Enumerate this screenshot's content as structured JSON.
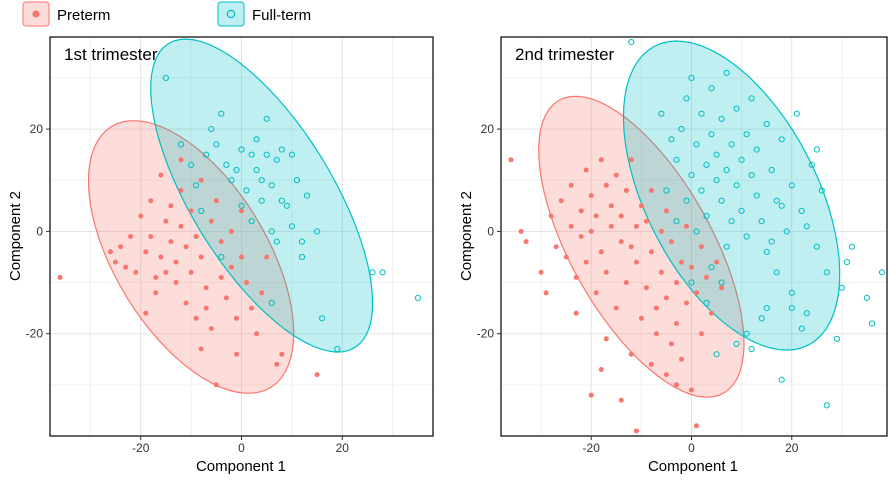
{
  "legend": {
    "placement": "top-left",
    "items": [
      {
        "label": "Preterm",
        "color": "#F8766D",
        "marker": "filled-circle"
      },
      {
        "label": "Full-term",
        "color": "#00BFC4",
        "marker": "open-circle"
      }
    ]
  },
  "chart_data": [
    {
      "type": "scatter",
      "title": "1st trimester",
      "xlabel": "Component 1",
      "ylabel": "Component 2",
      "xlim": [
        -38,
        38
      ],
      "ylim": [
        -40,
        38
      ],
      "xticks": [
        -20,
        0,
        20
      ],
      "yticks": [
        -20,
        0,
        20
      ],
      "grid": true,
      "series": [
        {
          "name": "Preterm",
          "color": "#F8766D",
          "ellipse": {
            "center": [
              -10,
              -5
            ],
            "rx": 30,
            "ry": 15,
            "angle_deg": -58
          },
          "points": [
            [
              -36,
              -9
            ],
            [
              -26,
              -4
            ],
            [
              -24,
              -3
            ],
            [
              -23,
              -7
            ],
            [
              -22,
              -1
            ],
            [
              -21,
              -8
            ],
            [
              -20,
              3
            ],
            [
              -19,
              -4
            ],
            [
              -18,
              6
            ],
            [
              -18,
              -1
            ],
            [
              -17,
              -9
            ],
            [
              -17,
              -12
            ],
            [
              -16,
              11
            ],
            [
              -16,
              -5
            ],
            [
              -15,
              2
            ],
            [
              -15,
              -8
            ],
            [
              -14,
              -2
            ],
            [
              -14,
              5
            ],
            [
              -13,
              -10
            ],
            [
              -13,
              -6
            ],
            [
              -12,
              1
            ],
            [
              -12,
              8
            ],
            [
              -11,
              -3
            ],
            [
              -11,
              -14
            ],
            [
              -10,
              4
            ],
            [
              -10,
              -8
            ],
            [
              -9,
              -1
            ],
            [
              -9,
              -17
            ],
            [
              -8,
              -5
            ],
            [
              -8,
              10
            ],
            [
              -8,
              -23
            ],
            [
              -7,
              -11
            ],
            [
              -6,
              2
            ],
            [
              -6,
              -19
            ],
            [
              -5,
              -30
            ],
            [
              -5,
              6
            ],
            [
              -4,
              -9
            ],
            [
              -4,
              -2
            ],
            [
              -3,
              -13
            ],
            [
              -2,
              0
            ],
            [
              -2,
              -7
            ],
            [
              -1,
              -17
            ],
            [
              -1,
              -24
            ],
            [
              0,
              4
            ],
            [
              0,
              -5
            ],
            [
              1,
              -10
            ],
            [
              2,
              -15
            ],
            [
              3,
              -20
            ],
            [
              4,
              -12
            ],
            [
              5,
              -5
            ],
            [
              8,
              -24
            ],
            [
              7,
              -26
            ],
            [
              15,
              -28
            ],
            [
              -25,
              -6
            ],
            [
              -19,
              -16
            ],
            [
              -12,
              14
            ],
            [
              -7,
              -15
            ]
          ]
        },
        {
          "name": "Full-term",
          "color": "#00BFC4",
          "ellipse": {
            "center": [
              4,
              7
            ],
            "rx": 35,
            "ry": 14,
            "angle_deg": -58
          },
          "points": [
            [
              -15,
              30
            ],
            [
              -12,
              17
            ],
            [
              -10,
              13
            ],
            [
              -9,
              9
            ],
            [
              -7,
              15
            ],
            [
              -6,
              20
            ],
            [
              -5,
              17
            ],
            [
              -4,
              23
            ],
            [
              -3,
              13
            ],
            [
              -2,
              10
            ],
            [
              -1,
              12
            ],
            [
              0,
              5
            ],
            [
              0,
              16
            ],
            [
              1,
              8
            ],
            [
              2,
              15
            ],
            [
              2,
              2
            ],
            [
              3,
              12
            ],
            [
              3,
              18
            ],
            [
              4,
              10
            ],
            [
              4,
              6
            ],
            [
              5,
              15
            ],
            [
              5,
              22
            ],
            [
              6,
              0
            ],
            [
              6,
              9
            ],
            [
              7,
              14
            ],
            [
              8,
              6
            ],
            [
              8,
              16
            ],
            [
              9,
              5
            ],
            [
              10,
              15
            ],
            [
              10,
              1
            ],
            [
              11,
              10
            ],
            [
              12,
              -2
            ],
            [
              13,
              7
            ],
            [
              15,
              0
            ],
            [
              16,
              -17
            ],
            [
              19,
              -23
            ],
            [
              26,
              -8
            ],
            [
              28,
              -8
            ],
            [
              35,
              -13
            ],
            [
              6,
              -14
            ],
            [
              -4,
              -5
            ],
            [
              -8,
              4
            ],
            [
              7,
              -2
            ],
            [
              12,
              -5
            ]
          ]
        }
      ]
    },
    {
      "type": "scatter",
      "title": "2nd trimester",
      "xlabel": "Component 1",
      "ylabel": "Component 2",
      "xlim": [
        -38,
        39
      ],
      "ylim": [
        -40,
        38
      ],
      "xticks": [
        -20,
        0,
        20
      ],
      "yticks": [
        -20,
        0,
        20
      ],
      "grid": true,
      "series": [
        {
          "name": "Preterm",
          "color": "#F8766D",
          "ellipse": {
            "center": [
              -10,
              -3
            ],
            "rx": 33,
            "ry": 14,
            "angle_deg": -60
          },
          "points": [
            [
              -36,
              14
            ],
            [
              -34,
              0
            ],
            [
              -33,
              -2
            ],
            [
              -30,
              -8
            ],
            [
              -28,
              3
            ],
            [
              -27,
              -3
            ],
            [
              -26,
              6
            ],
            [
              -25,
              -5
            ],
            [
              -24,
              1
            ],
            [
              -24,
              9
            ],
            [
              -23,
              -9
            ],
            [
              -22,
              4
            ],
            [
              -22,
              -1
            ],
            [
              -21,
              12
            ],
            [
              -21,
              -6
            ],
            [
              -20,
              0
            ],
            [
              -20,
              7
            ],
            [
              -19,
              -12
            ],
            [
              -19,
              3
            ],
            [
              -18,
              14
            ],
            [
              -18,
              -4
            ],
            [
              -17,
              9
            ],
            [
              -17,
              -8
            ],
            [
              -16,
              1
            ],
            [
              -16,
              5
            ],
            [
              -15,
              -15
            ],
            [
              -15,
              11
            ],
            [
              -14,
              -2
            ],
            [
              -14,
              3
            ],
            [
              -13,
              8
            ],
            [
              -13,
              -10
            ],
            [
              -12,
              -3
            ],
            [
              -12,
              14
            ],
            [
              -11,
              1
            ],
            [
              -11,
              -6
            ],
            [
              -10,
              5
            ],
            [
              -10,
              -17
            ],
            [
              -9,
              -11
            ],
            [
              -9,
              2
            ],
            [
              -8,
              -4
            ],
            [
              -8,
              8
            ],
            [
              -7,
              -15
            ],
            [
              -7,
              -20
            ],
            [
              -6,
              0
            ],
            [
              -6,
              -8
            ],
            [
              -5,
              4
            ],
            [
              -5,
              -13
            ],
            [
              -4,
              -22
            ],
            [
              -4,
              -2
            ],
            [
              -3,
              -10
            ],
            [
              -3,
              -18
            ],
            [
              -2,
              -6
            ],
            [
              -2,
              -25
            ],
            [
              -1,
              -14
            ],
            [
              -1,
              1
            ],
            [
              0,
              -7
            ],
            [
              0,
              -31
            ],
            [
              1,
              -12
            ],
            [
              2,
              -3
            ],
            [
              2,
              -20
            ],
            [
              3,
              -9
            ],
            [
              4,
              -16
            ],
            [
              5,
              -6
            ],
            [
              6,
              -11
            ],
            [
              -20,
              -32
            ],
            [
              -18,
              -27
            ],
            [
              -14,
              -33
            ],
            [
              -11,
              -39
            ],
            [
              -5,
              -28
            ],
            [
              -3,
              -30
            ],
            [
              -17,
              -21
            ],
            [
              -23,
              -16
            ],
            [
              -29,
              -12
            ],
            [
              -12,
              -24
            ],
            [
              -8,
              -26
            ],
            [
              1,
              -38
            ]
          ]
        },
        {
          "name": "Full-term",
          "color": "#00BFC4",
          "ellipse": {
            "center": [
              8,
              7
            ],
            "rx": 33,
            "ry": 17,
            "angle_deg": -62
          },
          "points": [
            [
              -12,
              37
            ],
            [
              -6,
              23
            ],
            [
              -4,
              18
            ],
            [
              -3,
              14
            ],
            [
              -2,
              20
            ],
            [
              -1,
              26
            ],
            [
              0,
              11
            ],
            [
              0,
              30
            ],
            [
              1,
              17
            ],
            [
              2,
              8
            ],
            [
              2,
              23
            ],
            [
              3,
              13
            ],
            [
              3,
              3
            ],
            [
              4,
              19
            ],
            [
              4,
              28
            ],
            [
              5,
              10
            ],
            [
              5,
              15
            ],
            [
              6,
              6
            ],
            [
              6,
              22
            ],
            [
              7,
              12
            ],
            [
              7,
              31
            ],
            [
              8,
              2
            ],
            [
              8,
              17
            ],
            [
              9,
              9
            ],
            [
              9,
              24
            ],
            [
              10,
              14
            ],
            [
              10,
              4
            ],
            [
              11,
              19
            ],
            [
              11,
              -1
            ],
            [
              12,
              11
            ],
            [
              12,
              26
            ],
            [
              13,
              7
            ],
            [
              13,
              16
            ],
            [
              14,
              2
            ],
            [
              15,
              21
            ],
            [
              15,
              -4
            ],
            [
              16,
              12
            ],
            [
              17,
              6
            ],
            [
              17,
              -8
            ],
            [
              18,
              18
            ],
            [
              19,
              0
            ],
            [
              20,
              9
            ],
            [
              20,
              -12
            ],
            [
              21,
              23
            ],
            [
              22,
              4
            ],
            [
              23,
              -16
            ],
            [
              24,
              13
            ],
            [
              25,
              -3
            ],
            [
              26,
              8
            ],
            [
              27,
              -8
            ],
            [
              29,
              -21
            ],
            [
              30,
              -11
            ],
            [
              31,
              -6
            ],
            [
              32,
              -3
            ],
            [
              35,
              -13
            ],
            [
              36,
              -18
            ],
            [
              38,
              -8
            ],
            [
              14,
              -17
            ],
            [
              11,
              -20
            ],
            [
              9,
              -22
            ],
            [
              12,
              -23
            ],
            [
              18,
              -29
            ],
            [
              20,
              -15
            ],
            [
              22,
              -19
            ],
            [
              27,
              -34
            ],
            [
              15,
              -15
            ],
            [
              5,
              -24
            ],
            [
              3,
              -14
            ],
            [
              6,
              -10
            ],
            [
              7,
              -3
            ],
            [
              -1,
              6
            ],
            [
              1,
              0
            ],
            [
              4,
              -7
            ],
            [
              -3,
              2
            ],
            [
              -5,
              8
            ],
            [
              0,
              -10
            ],
            [
              16,
              -2
            ],
            [
              18,
              5
            ],
            [
              23,
              1
            ],
            [
              25,
              16
            ]
          ]
        }
      ]
    }
  ]
}
